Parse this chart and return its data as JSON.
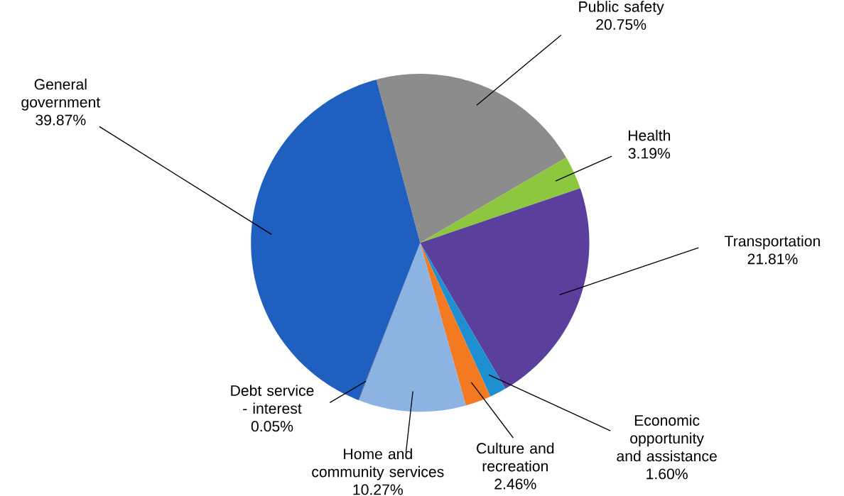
{
  "chart_data": {
    "type": "pie",
    "categories": [
      "Public safety",
      "Health",
      "Transportation",
      "Economic opportunity and assistance",
      "Culture and recreation",
      "Home and community services",
      "Debt service - interest",
      "General government"
    ],
    "values": [
      20.75,
      3.19,
      21.81,
      1.6,
      2.46,
      10.27,
      0.05,
      39.87
    ],
    "value_labels": [
      "20.75%",
      "3.19%",
      "21.81%",
      "1.60%",
      "2.46%",
      "10.27%",
      "0.05%",
      "39.87%"
    ],
    "colors": [
      "#8c8c8c",
      "#8dc63f",
      "#5a3f9c",
      "#1e8fd0",
      "#f37a21",
      "#8db3e2",
      "#17375e",
      "#1f5fbf"
    ]
  }
}
